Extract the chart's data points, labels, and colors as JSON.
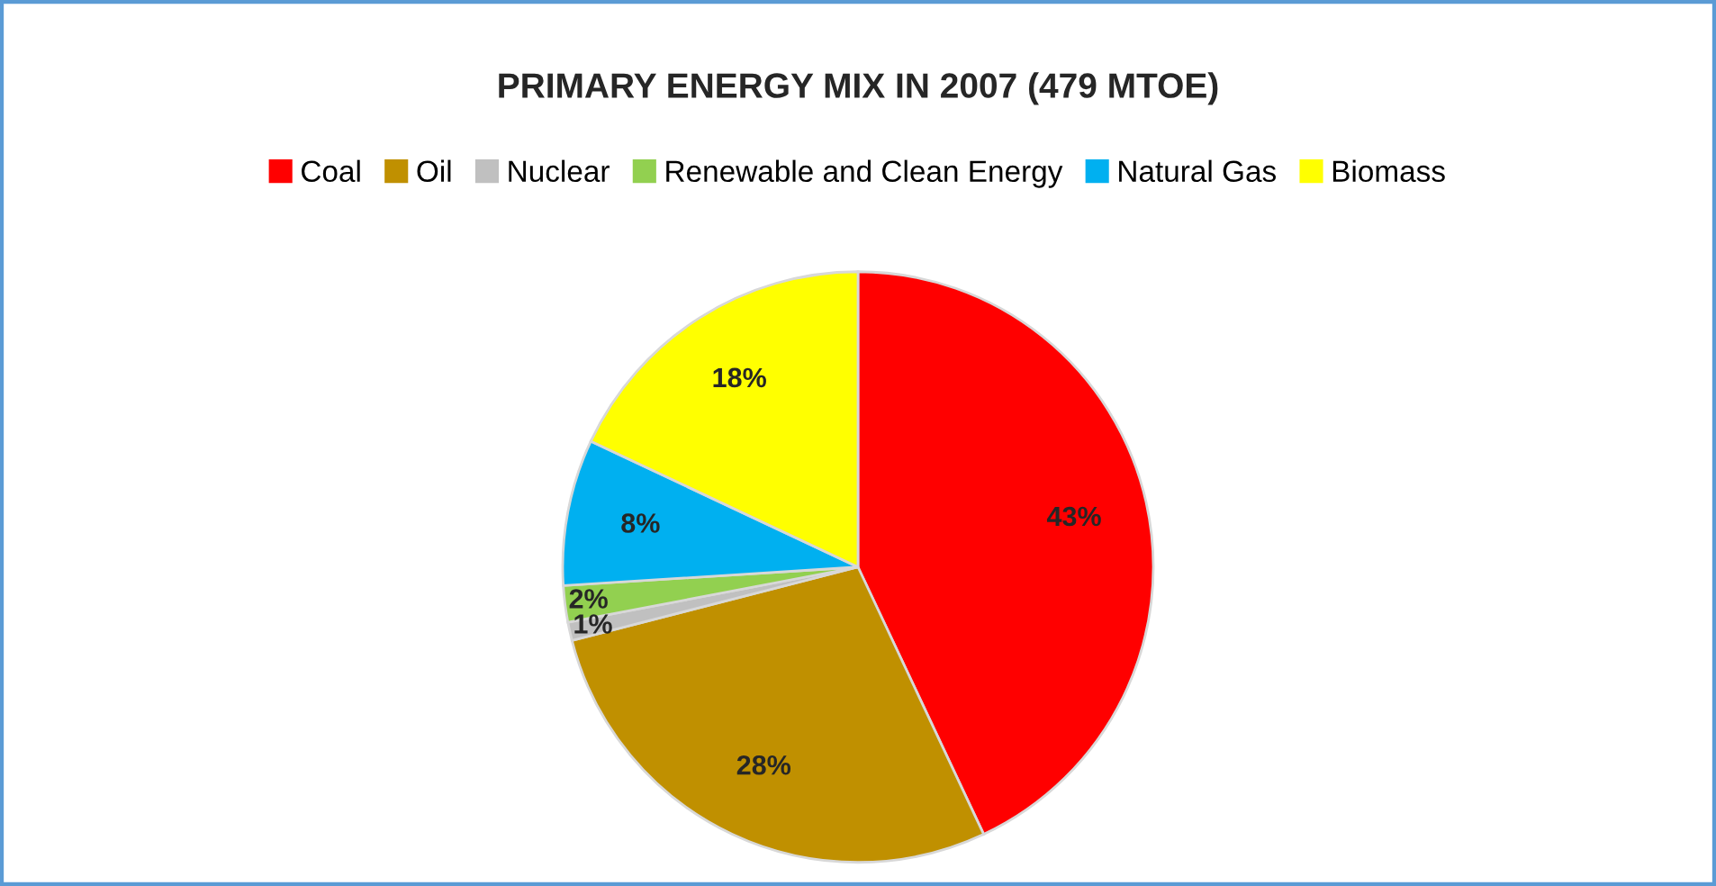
{
  "chart_data": {
    "type": "pie",
    "title": "PRIMARY ENERGY MIX IN 2007 (479 MTOE)",
    "categories": [
      "Coal",
      "Oil",
      "Nuclear",
      "Renewable and Clean Energy",
      "Natural Gas",
      "Biomass"
    ],
    "values": [
      43,
      28,
      1,
      2,
      8,
      18
    ],
    "value_labels": [
      "43%",
      "28%",
      "1%",
      "2%",
      "8%",
      "18%"
    ],
    "colors": [
      "#ff0000",
      "#c09000",
      "#c0c0c0",
      "#92d050",
      "#00b0f0",
      "#ffff00"
    ],
    "legend": "top"
  }
}
